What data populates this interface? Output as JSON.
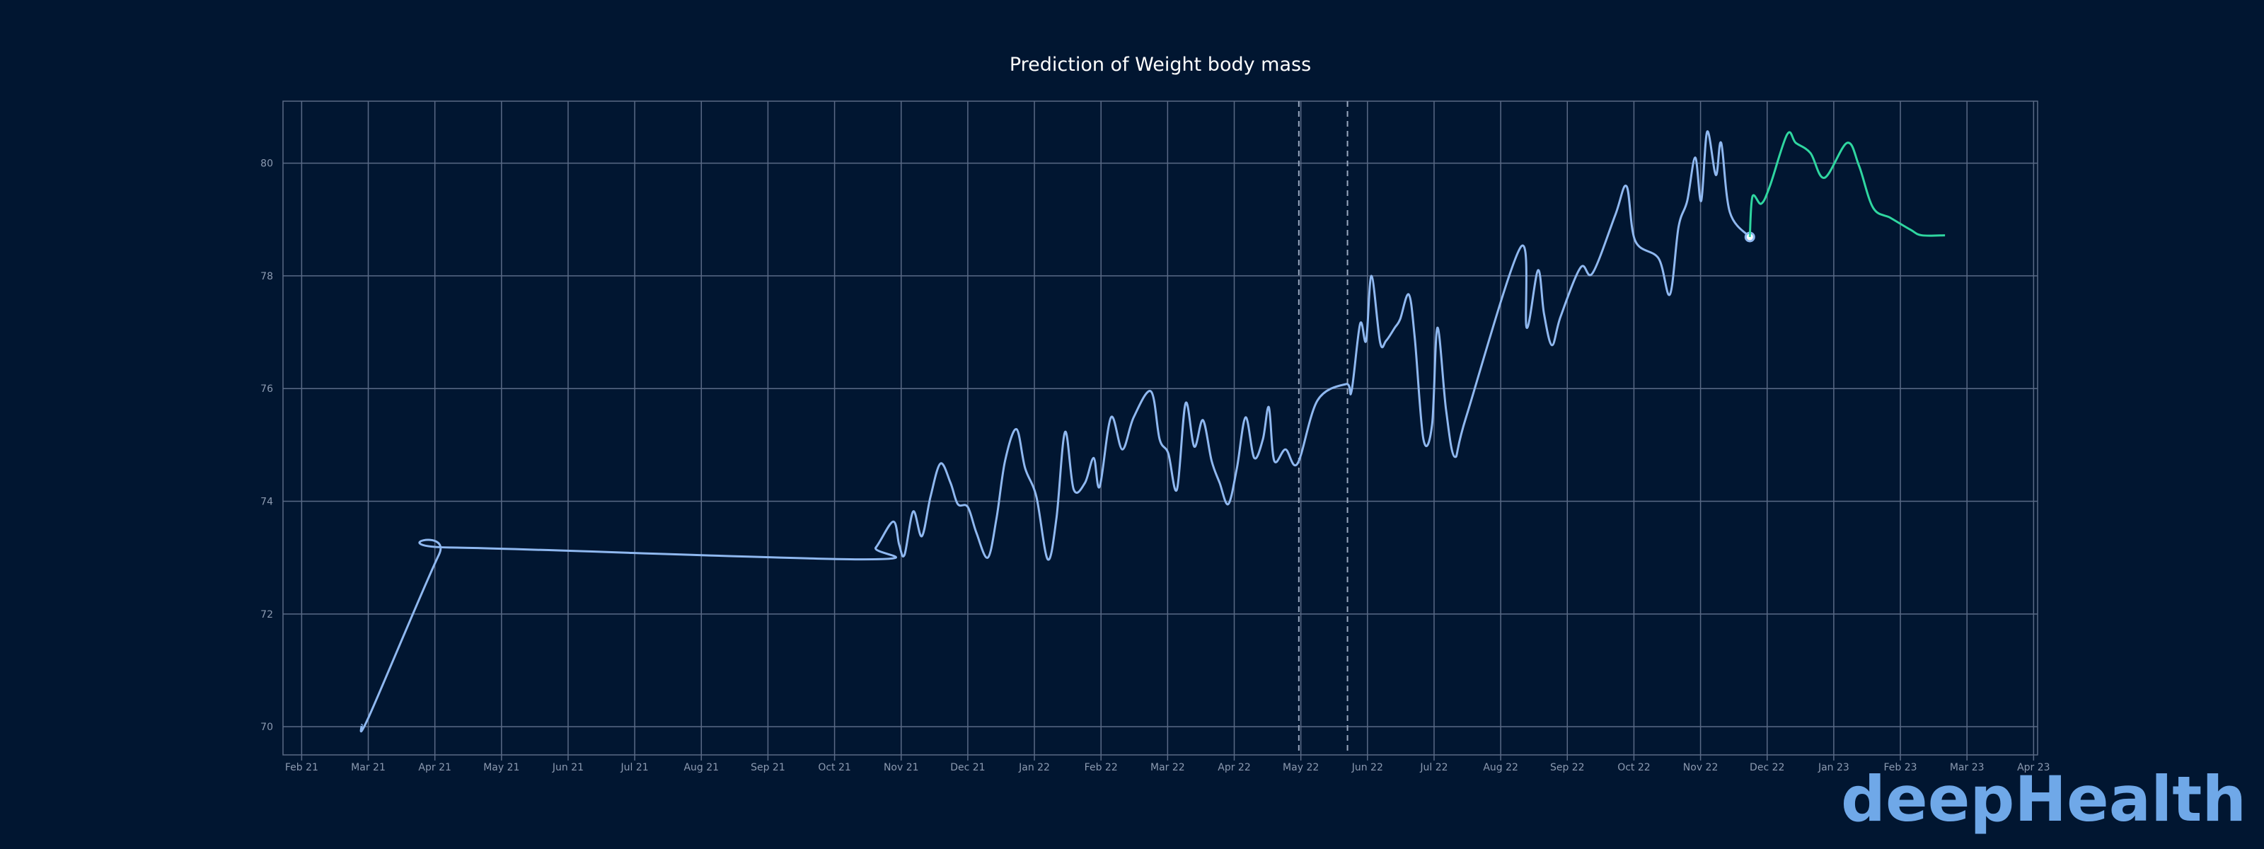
{
  "chart_data": {
    "type": "line",
    "title": "Prediction of Weight body mass",
    "logo": "deepHealth",
    "xlim": [
      0.72,
      27.06
    ],
    "ylim": [
      69.5,
      81.1
    ],
    "xticks": [
      {
        "value": 1,
        "label": "Feb 21"
      },
      {
        "value": 2,
        "label": "Mar 21"
      },
      {
        "value": 3,
        "label": "Apr 21"
      },
      {
        "value": 4,
        "label": "May 21"
      },
      {
        "value": 5,
        "label": "Jun 21"
      },
      {
        "value": 6,
        "label": "Jul 21"
      },
      {
        "value": 7,
        "label": "Aug 21"
      },
      {
        "value": 8,
        "label": "Sep 21"
      },
      {
        "value": 9,
        "label": "Oct 21"
      },
      {
        "value": 10,
        "label": "Nov 21"
      },
      {
        "value": 11,
        "label": "Dec 21"
      },
      {
        "value": 12,
        "label": "Jan 22"
      },
      {
        "value": 13,
        "label": "Feb 22"
      },
      {
        "value": 14,
        "label": "Mar 22"
      },
      {
        "value": 15,
        "label": "Apr 22"
      },
      {
        "value": 16,
        "label": "May 22"
      },
      {
        "value": 17,
        "label": "Jun 22"
      },
      {
        "value": 18,
        "label": "Jul 22"
      },
      {
        "value": 19,
        "label": "Aug 22"
      },
      {
        "value": 20,
        "label": "Sep 22"
      },
      {
        "value": 21,
        "label": "Oct 22"
      },
      {
        "value": 22,
        "label": "Nov 22"
      },
      {
        "value": 23,
        "label": "Dec 22"
      },
      {
        "value": 24,
        "label": "Jan 23"
      },
      {
        "value": 25,
        "label": "Feb 23"
      },
      {
        "value": 26,
        "label": "Mar 23"
      },
      {
        "value": 27,
        "label": "Apr 23"
      }
    ],
    "yticks": [
      70,
      72,
      74,
      76,
      78,
      80
    ],
    "grid": true,
    "vlines": [
      15.97,
      16.7
    ],
    "series": [
      {
        "color": "#8fb8f0",
        "marker": "last",
        "x": [
          1.9,
          2.01,
          3.06,
          3.24,
          9.41,
          9.62,
          9.88,
          9.97,
          10.05,
          10.18,
          10.31,
          10.44,
          10.59,
          10.74,
          10.85,
          11.0,
          11.13,
          11.3,
          11.43,
          11.56,
          11.73,
          11.86,
          12.03,
          12.2,
          12.33,
          12.46,
          12.59,
          12.76,
          12.89,
          12.98,
          13.15,
          13.32,
          13.49,
          13.75,
          13.88,
          14.01,
          14.14,
          14.27,
          14.4,
          14.53,
          14.66,
          14.78,
          14.91,
          15.04,
          15.17,
          15.3,
          15.43,
          15.52,
          15.6,
          15.77,
          15.95,
          16.25,
          16.68,
          16.76,
          16.89,
          16.98,
          17.06,
          17.19,
          17.28,
          17.41,
          17.49,
          17.62,
          17.71,
          17.84,
          17.97,
          18.05,
          18.18,
          18.31,
          18.48,
          19.3,
          19.39,
          19.56,
          19.65,
          19.77,
          19.9,
          20.2,
          20.38,
          20.72,
          20.89,
          21.02,
          21.37,
          21.54,
          21.67,
          21.8,
          21.92,
          22.01,
          22.1,
          22.23,
          22.31,
          22.44,
          22.74
        ],
        "values": [
          70.03,
          70.18,
          73.05,
          73.18,
          72.97,
          73.18,
          73.64,
          73.23,
          73.05,
          73.82,
          73.38,
          74.08,
          74.67,
          74.33,
          73.95,
          73.9,
          73.44,
          73.0,
          73.69,
          74.72,
          75.28,
          74.59,
          74.08,
          72.97,
          73.69,
          75.23,
          74.21,
          74.33,
          74.77,
          74.26,
          75.49,
          74.92,
          75.49,
          75.95,
          75.1,
          74.85,
          74.21,
          75.74,
          74.97,
          75.44,
          74.72,
          74.33,
          73.95,
          74.59,
          75.49,
          74.77,
          75.1,
          75.67,
          74.72,
          74.92,
          74.67,
          75.79,
          76.08,
          75.95,
          77.15,
          76.85,
          78.0,
          76.82,
          76.85,
          77.08,
          77.23,
          77.67,
          76.9,
          75.1,
          75.36,
          77.08,
          75.62,
          74.79,
          75.49,
          78.51,
          77.08,
          78.1,
          77.33,
          76.77,
          77.28,
          78.15,
          78.05,
          79.08,
          79.59,
          78.62,
          78.31,
          77.67,
          78.87,
          79.33,
          80.1,
          79.33,
          80.56,
          79.79,
          80.36,
          79.13,
          78.69
        ]
      },
      {
        "color": "#2fd6a0",
        "x": [
          22.74,
          22.78,
          22.91,
          23.04,
          23.3,
          23.43,
          23.65,
          23.86,
          24.2,
          24.38,
          24.59,
          24.85,
          25.15,
          25.32,
          25.67
        ],
        "values": [
          78.69,
          79.41,
          79.28,
          79.59,
          80.51,
          80.36,
          80.18,
          79.74,
          80.36,
          79.95,
          79.21,
          79.03,
          78.82,
          78.72,
          78.72
        ]
      }
    ]
  }
}
